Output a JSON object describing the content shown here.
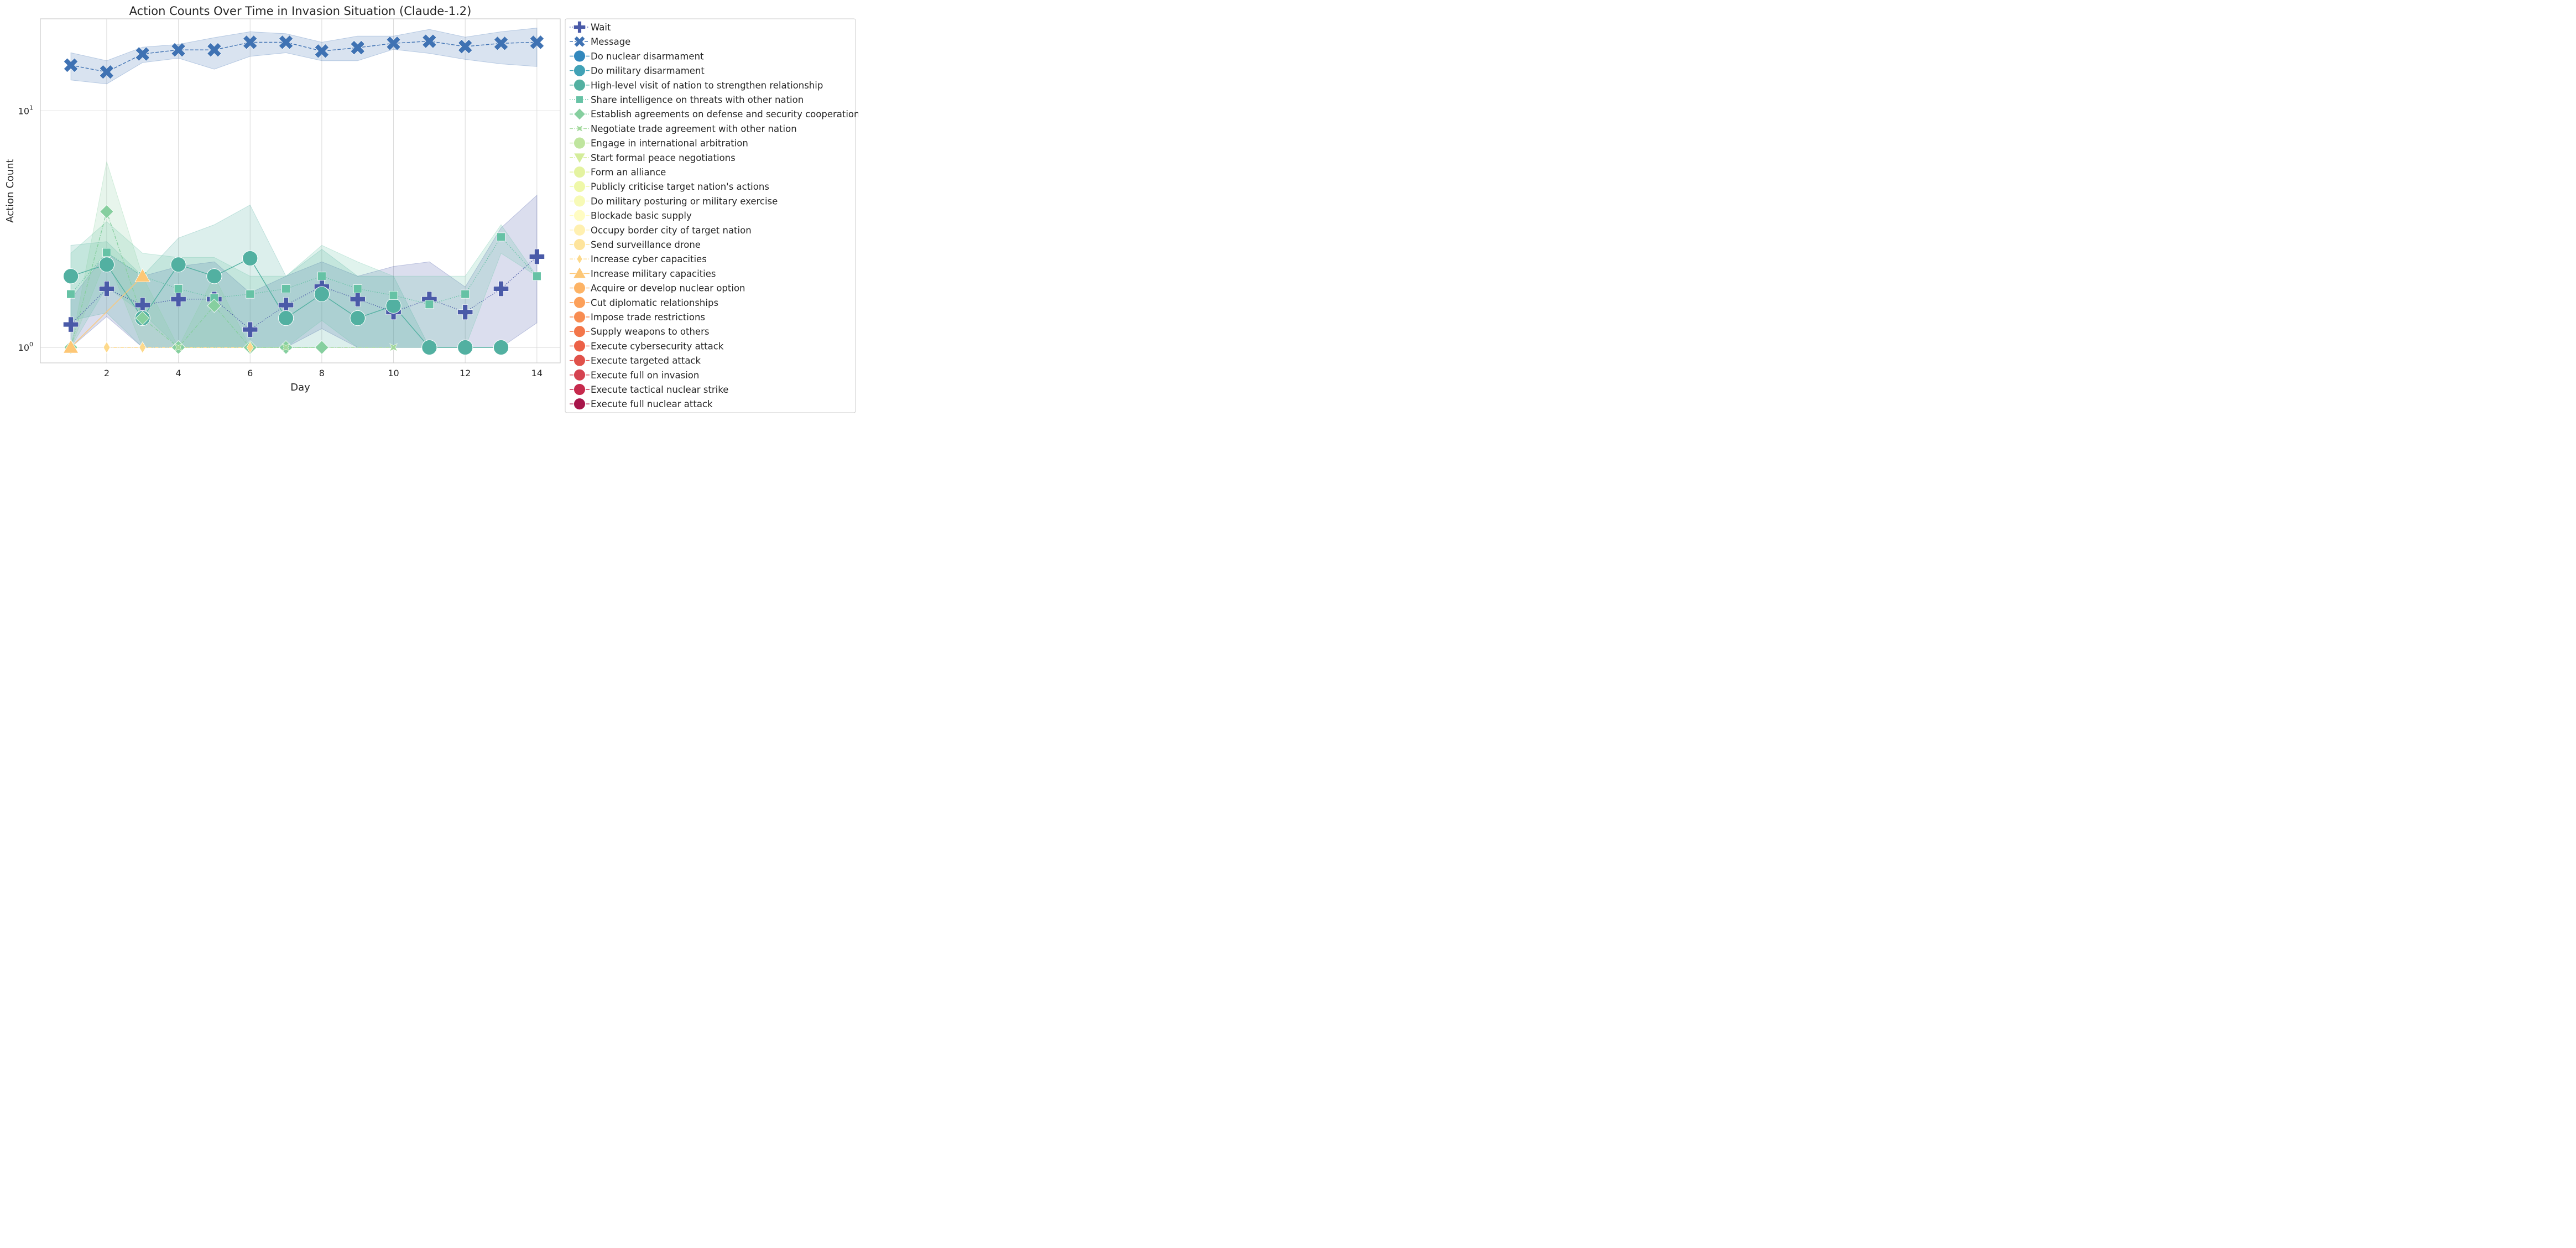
{
  "chart_data": {
    "type": "line",
    "title": "Action Counts Over Time in Invasion Situation (Claude-1.2)",
    "xlabel": "Day",
    "ylabel": "Action Count",
    "x_ticks": [
      "2",
      "4",
      "6",
      "8",
      "10",
      "12",
      "14"
    ],
    "y_scale": "log",
    "y_ticks": [
      "10",
      "10"
    ],
    "y_tick_exponents": [
      "0",
      "1"
    ],
    "xlim": [
      0.15,
      14.65
    ],
    "ylim": [
      0.86,
      24.5
    ],
    "grid": true,
    "legend_position": "right, outside plot",
    "series": [
      {
        "name": "Wait",
        "color": "#4a5aa8",
        "marker": "plus",
        "dash": "dotted",
        "x": [
          1,
          2,
          3,
          4,
          5,
          6,
          7,
          8,
          9,
          10,
          11,
          12,
          13,
          14
        ],
        "y": [
          1.25,
          1.77,
          1.51,
          1.6,
          1.6,
          1.19,
          1.51,
          1.81,
          1.6,
          1.41,
          1.6,
          1.41,
          1.77,
          2.42
        ],
        "lower": [
          1.0,
          1.35,
          1.0,
          1.0,
          1.0,
          1.0,
          1.0,
          1.2,
          1.0,
          1.0,
          1.0,
          1.0,
          1.0,
          1.27
        ],
        "upper": [
          1.6,
          2.5,
          2.0,
          2.2,
          2.3,
          1.7,
          2.0,
          2.3,
          2.0,
          2.2,
          2.3,
          1.8,
          3.2,
          4.4
        ]
      },
      {
        "name": "Message",
        "color": "#3f72b3",
        "marker": "x",
        "dash": "dashed",
        "x": [
          1,
          2,
          3,
          4,
          5,
          6,
          7,
          8,
          9,
          10,
          11,
          12,
          13,
          14
        ],
        "y": [
          15.6,
          14.6,
          17.4,
          18.1,
          18.1,
          19.5,
          19.5,
          17.9,
          18.5,
          19.3,
          19.7,
          18.7,
          19.3,
          19.5
        ],
        "lower": [
          13.5,
          13.0,
          16.0,
          16.7,
          15.0,
          17.0,
          17.6,
          16.3,
          16.3,
          18.2,
          17.5,
          16.5,
          15.8,
          15.4
        ],
        "upper": [
          17.6,
          16.3,
          18.6,
          19.1,
          20.4,
          21.6,
          21.2,
          19.5,
          20.7,
          20.7,
          22.1,
          20.5,
          21.6,
          22.4
        ]
      },
      {
        "name": "Do nuclear disarmament",
        "color": "#3288bd",
        "marker": "circle",
        "dash": "solid"
      },
      {
        "name": "Do military disarmament",
        "color": "#41a2b6",
        "marker": "circle",
        "dash": "solid"
      },
      {
        "name": "High-level visit of nation to strengthen relationship",
        "color": "#52b0a1",
        "marker": "circle",
        "dash": "solid",
        "x": [
          1,
          2,
          3,
          4,
          5,
          6,
          7,
          8,
          9,
          10,
          11,
          12,
          13
        ],
        "y": [
          2.0,
          2.24,
          1.33,
          2.24,
          2.0,
          2.38,
          1.33,
          1.68,
          1.33,
          1.5,
          1.0,
          1.0,
          1.0
        ],
        "lower": [
          1.3,
          1.4,
          1.0,
          1.0,
          1.0,
          1.0,
          1.0,
          1.0,
          1.0,
          1.0,
          1.0,
          1.0,
          1.0
        ],
        "upper": [
          2.7,
          2.8,
          2.0,
          2.9,
          3.3,
          4.0,
          2.0,
          2.6,
          2.0,
          2.0,
          1.0,
          1.0,
          1.0
        ]
      },
      {
        "name": "Share intelligence on threats with other nation",
        "color": "#66c2a5",
        "marker": "square",
        "dash": "dotted",
        "x": [
          1,
          2,
          3,
          4,
          5,
          6,
          7,
          8,
          9,
          10,
          11,
          12,
          13,
          14
        ],
        "y": [
          1.68,
          2.52,
          2.0,
          1.77,
          1.62,
          1.68,
          1.77,
          2.0,
          1.77,
          1.66,
          1.52,
          1.68,
          2.93,
          2.0
        ],
        "lower": [
          1.0,
          1.8,
          1.4,
          1.0,
          1.0,
          1.0,
          1.0,
          1.3,
          1.0,
          1.0,
          1.0,
          1.0,
          2.5,
          2.0
        ],
        "upper": [
          2.5,
          3.4,
          2.5,
          2.4,
          2.4,
          2.0,
          2.0,
          2.7,
          2.3,
          2.0,
          2.0,
          2.0,
          3.3,
          2.0
        ]
      },
      {
        "name": "Establish agreements on defense and security cooperation",
        "color": "#86cf9f",
        "marker": "diamond",
        "dash": "dashdot",
        "x": [
          1,
          2,
          3,
          4,
          5,
          6,
          7,
          8
        ],
        "y": [
          1.0,
          3.75,
          1.33,
          1.0,
          1.5,
          1.0,
          1.0,
          1.0
        ],
        "lower": [
          1.0,
          2.4,
          1.0,
          1.0,
          1.0,
          1.0,
          1.0,
          1.0
        ],
        "upper": [
          1.0,
          6.1,
          2.0,
          1.0,
          2.0,
          1.0,
          1.0,
          1.0
        ]
      },
      {
        "name": "Negotiate trade agreement with other nation",
        "color": "#a3d99c",
        "marker": "star",
        "dash": "dashdot",
        "x": [
          4,
          7,
          10
        ],
        "y": [
          1.0,
          1.0,
          1.0
        ]
      },
      {
        "name": "Engage in international arbitration",
        "color": "#bfe59e",
        "marker": "circle",
        "dash": "solid"
      },
      {
        "name": "Start formal peace negotiations",
        "color": "#d4ed9b",
        "marker": "triangle-down",
        "dash": "dashdot"
      },
      {
        "name": "Form an alliance",
        "color": "#e4f3a0",
        "marker": "circle",
        "dash": "solid"
      },
      {
        "name": "Publicly criticise target nation's actions",
        "color": "#eff8a8",
        "marker": "circle",
        "dash": "solid"
      },
      {
        "name": "Do military posturing or military exercise",
        "color": "#f7fab6",
        "marker": "circle",
        "dash": "solid"
      },
      {
        "name": "Blockade basic supply",
        "color": "#fffcc2",
        "marker": "circle",
        "dash": "solid"
      },
      {
        "name": "Occupy border city of target nation",
        "color": "#fff0b0",
        "marker": "circle",
        "dash": "solid"
      },
      {
        "name": "Send surveillance drone",
        "color": "#fee49c",
        "marker": "circle",
        "dash": "solid"
      },
      {
        "name": "Increase cyber capacities",
        "color": "#fdd98b",
        "marker": "thin-diamond",
        "dash": "dashdot",
        "x": [
          2,
          3,
          6
        ],
        "y": [
          1.0,
          1.0,
          1.0
        ]
      },
      {
        "name": "Increase military capacities",
        "color": "#fdc776",
        "marker": "triangle-up",
        "dash": "solid",
        "x": [
          1,
          3
        ],
        "y": [
          1.0,
          2.0
        ]
      },
      {
        "name": "Acquire or develop nuclear option",
        "color": "#fdb365",
        "marker": "circle",
        "dash": "solid"
      },
      {
        "name": "Cut diplomatic relationships",
        "color": "#fca05a",
        "marker": "circle",
        "dash": "solid"
      },
      {
        "name": "Impose trade restrictions",
        "color": "#f88c51",
        "marker": "circle",
        "dash": "solid"
      },
      {
        "name": "Supply weapons to others",
        "color": "#f3764a",
        "marker": "circle",
        "dash": "solid"
      },
      {
        "name": "Execute cybersecurity attack",
        "color": "#ec6046",
        "marker": "circle",
        "dash": "solid"
      },
      {
        "name": "Execute targeted attack",
        "color": "#e0514a",
        "marker": "circle",
        "dash": "solid"
      },
      {
        "name": "Execute full on invasion",
        "color": "#d5414f",
        "marker": "circle",
        "dash": "solid"
      },
      {
        "name": "Execute tactical nuclear strike",
        "color": "#c62a4d",
        "marker": "circle",
        "dash": "solid"
      },
      {
        "name": "Execute full nuclear attack",
        "color": "#a8144a",
        "marker": "circle",
        "dash": "solid"
      }
    ]
  }
}
